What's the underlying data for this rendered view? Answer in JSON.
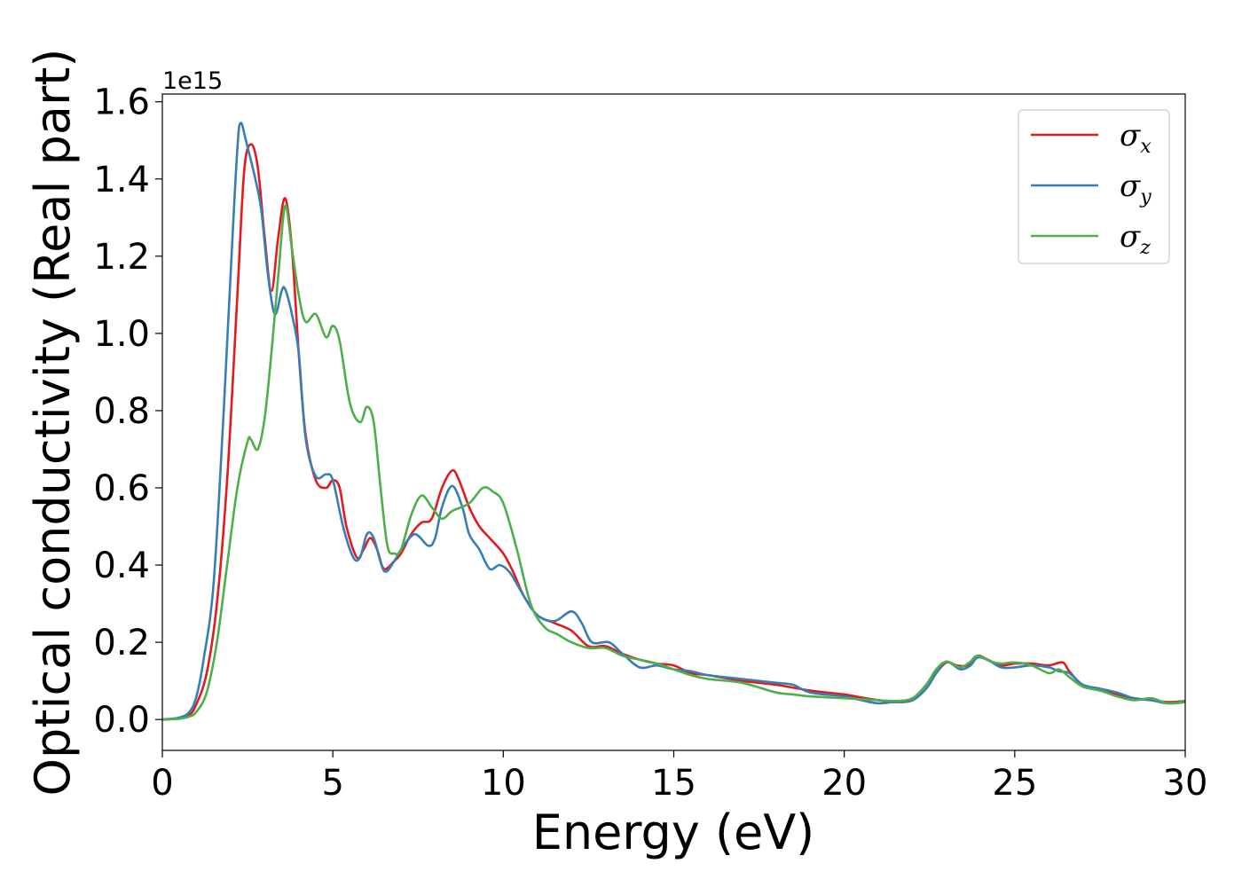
{
  "chart_data": {
    "type": "line",
    "title": "",
    "xlabel": "Energy (eV)",
    "ylabel": "Optical conductivity (Real part)",
    "y_offset_label": "1e15",
    "xlim": [
      0,
      30
    ],
    "ylim": [
      -0.08,
      1.62
    ],
    "x_ticks": [
      0,
      5,
      10,
      15,
      20,
      25,
      30
    ],
    "y_ticks": [
      0.0,
      0.2,
      0.4,
      0.6,
      0.8,
      1.0,
      1.2,
      1.4,
      1.6
    ],
    "x_tick_labels": [
      "0",
      "5",
      "10",
      "15",
      "20",
      "25",
      "30"
    ],
    "y_tick_labels": [
      "0.0",
      "0.2",
      "0.4",
      "0.6",
      "0.8",
      "1.0",
      "1.2",
      "1.4",
      "1.6"
    ],
    "grid": false,
    "legend_position": "top-right",
    "series": [
      {
        "name": "σx",
        "symbol": "σ",
        "subscript": "x",
        "color": "#e41a1c",
        "points": [
          [
            0,
            0
          ],
          [
            0.5,
            0.003
          ],
          [
            0.8,
            0.012
          ],
          [
            1.0,
            0.04
          ],
          [
            1.3,
            0.12
          ],
          [
            1.6,
            0.3
          ],
          [
            1.9,
            0.62
          ],
          [
            2.2,
            1.1
          ],
          [
            2.4,
            1.42
          ],
          [
            2.6,
            1.49
          ],
          [
            2.8,
            1.43
          ],
          [
            3.0,
            1.25
          ],
          [
            3.2,
            1.11
          ],
          [
            3.4,
            1.25
          ],
          [
            3.6,
            1.35
          ],
          [
            3.8,
            1.22
          ],
          [
            4.0,
            0.95
          ],
          [
            4.2,
            0.74
          ],
          [
            4.5,
            0.62
          ],
          [
            4.8,
            0.6
          ],
          [
            5.0,
            0.62
          ],
          [
            5.2,
            0.6
          ],
          [
            5.4,
            0.5
          ],
          [
            5.7,
            0.42
          ],
          [
            5.9,
            0.44
          ],
          [
            6.1,
            0.47
          ],
          [
            6.3,
            0.44
          ],
          [
            6.5,
            0.39
          ],
          [
            6.8,
            0.41
          ],
          [
            7.0,
            0.43
          ],
          [
            7.3,
            0.48
          ],
          [
            7.6,
            0.51
          ],
          [
            7.9,
            0.52
          ],
          [
            8.2,
            0.6
          ],
          [
            8.5,
            0.645
          ],
          [
            8.7,
            0.62
          ],
          [
            9.0,
            0.55
          ],
          [
            9.3,
            0.5
          ],
          [
            9.6,
            0.47
          ],
          [
            10.0,
            0.43
          ],
          [
            10.3,
            0.38
          ],
          [
            10.6,
            0.32
          ],
          [
            11.0,
            0.27
          ],
          [
            11.5,
            0.25
          ],
          [
            12.0,
            0.23
          ],
          [
            12.5,
            0.19
          ],
          [
            13.0,
            0.19
          ],
          [
            13.5,
            0.17
          ],
          [
            14.0,
            0.155
          ],
          [
            14.5,
            0.145
          ],
          [
            15.0,
            0.14
          ],
          [
            15.5,
            0.12
          ],
          [
            16.0,
            0.115
          ],
          [
            17.0,
            0.1
          ],
          [
            18.0,
            0.09
          ],
          [
            19.0,
            0.075
          ],
          [
            20.0,
            0.065
          ],
          [
            20.5,
            0.057
          ],
          [
            21.0,
            0.05
          ],
          [
            21.5,
            0.045
          ],
          [
            22.0,
            0.05
          ],
          [
            22.4,
            0.08
          ],
          [
            22.7,
            0.12
          ],
          [
            23.0,
            0.148
          ],
          [
            23.3,
            0.14
          ],
          [
            23.6,
            0.14
          ],
          [
            23.9,
            0.165
          ],
          [
            24.2,
            0.155
          ],
          [
            24.6,
            0.14
          ],
          [
            25.0,
            0.145
          ],
          [
            25.5,
            0.145
          ],
          [
            26.0,
            0.14
          ],
          [
            26.4,
            0.148
          ],
          [
            26.6,
            0.125
          ],
          [
            27.0,
            0.088
          ],
          [
            27.5,
            0.075
          ],
          [
            28.0,
            0.065
          ],
          [
            28.5,
            0.055
          ],
          [
            29.0,
            0.05
          ],
          [
            29.5,
            0.045
          ],
          [
            30.0,
            0.048
          ]
        ]
      },
      {
        "name": "σy",
        "symbol": "σ",
        "subscript": "y",
        "color": "#377eb8",
        "points": [
          [
            0,
            0
          ],
          [
            0.5,
            0.005
          ],
          [
            0.8,
            0.02
          ],
          [
            1.0,
            0.06
          ],
          [
            1.2,
            0.15
          ],
          [
            1.5,
            0.35
          ],
          [
            1.8,
            0.8
          ],
          [
            2.0,
            1.15
          ],
          [
            2.2,
            1.48
          ],
          [
            2.3,
            1.545
          ],
          [
            2.45,
            1.5
          ],
          [
            2.7,
            1.41
          ],
          [
            2.9,
            1.32
          ],
          [
            3.1,
            1.15
          ],
          [
            3.3,
            1.05
          ],
          [
            3.5,
            1.11
          ],
          [
            3.6,
            1.115
          ],
          [
            3.8,
            1.05
          ],
          [
            4.0,
            0.95
          ],
          [
            4.2,
            0.73
          ],
          [
            4.5,
            0.63
          ],
          [
            4.8,
            0.635
          ],
          [
            5.0,
            0.62
          ],
          [
            5.3,
            0.5
          ],
          [
            5.6,
            0.42
          ],
          [
            5.8,
            0.42
          ],
          [
            6.0,
            0.48
          ],
          [
            6.2,
            0.47
          ],
          [
            6.5,
            0.385
          ],
          [
            6.8,
            0.41
          ],
          [
            7.0,
            0.44
          ],
          [
            7.4,
            0.48
          ],
          [
            7.8,
            0.45
          ],
          [
            8.0,
            0.47
          ],
          [
            8.2,
            0.55
          ],
          [
            8.5,
            0.605
          ],
          [
            8.8,
            0.55
          ],
          [
            9.0,
            0.48
          ],
          [
            9.3,
            0.44
          ],
          [
            9.6,
            0.39
          ],
          [
            9.9,
            0.4
          ],
          [
            10.2,
            0.38
          ],
          [
            10.6,
            0.32
          ],
          [
            11.0,
            0.27
          ],
          [
            11.5,
            0.255
          ],
          [
            12.0,
            0.28
          ],
          [
            12.3,
            0.25
          ],
          [
            12.6,
            0.2
          ],
          [
            13.1,
            0.2
          ],
          [
            13.5,
            0.17
          ],
          [
            14.0,
            0.135
          ],
          [
            14.5,
            0.14
          ],
          [
            15.0,
            0.13
          ],
          [
            15.5,
            0.125
          ],
          [
            16.0,
            0.115
          ],
          [
            17.0,
            0.105
          ],
          [
            18.0,
            0.095
          ],
          [
            18.5,
            0.09
          ],
          [
            19.0,
            0.07
          ],
          [
            20.0,
            0.06
          ],
          [
            20.5,
            0.05
          ],
          [
            21.0,
            0.042
          ],
          [
            21.5,
            0.046
          ],
          [
            22.0,
            0.05
          ],
          [
            22.4,
            0.08
          ],
          [
            22.7,
            0.12
          ],
          [
            23.0,
            0.15
          ],
          [
            23.4,
            0.13
          ],
          [
            23.7,
            0.14
          ],
          [
            23.9,
            0.16
          ],
          [
            24.2,
            0.155
          ],
          [
            24.6,
            0.135
          ],
          [
            25.0,
            0.135
          ],
          [
            25.5,
            0.14
          ],
          [
            26.0,
            0.135
          ],
          [
            26.3,
            0.125
          ],
          [
            26.6,
            0.12
          ],
          [
            27.0,
            0.09
          ],
          [
            27.5,
            0.08
          ],
          [
            28.0,
            0.07
          ],
          [
            28.5,
            0.055
          ],
          [
            29.0,
            0.05
          ],
          [
            29.5,
            0.042
          ],
          [
            30.0,
            0.048
          ]
        ]
      },
      {
        "name": "σz",
        "symbol": "σ",
        "subscript": "z",
        "color": "#4daf4a",
        "points": [
          [
            0,
            0
          ],
          [
            0.5,
            0.002
          ],
          [
            0.8,
            0.008
          ],
          [
            1.0,
            0.02
          ],
          [
            1.3,
            0.07
          ],
          [
            1.6,
            0.2
          ],
          [
            1.9,
            0.4
          ],
          [
            2.2,
            0.6
          ],
          [
            2.5,
            0.72
          ],
          [
            2.6,
            0.725
          ],
          [
            2.8,
            0.7
          ],
          [
            3.0,
            0.78
          ],
          [
            3.2,
            0.95
          ],
          [
            3.4,
            1.15
          ],
          [
            3.6,
            1.33
          ],
          [
            3.8,
            1.22
          ],
          [
            4.0,
            1.1
          ],
          [
            4.2,
            1.03
          ],
          [
            4.5,
            1.05
          ],
          [
            4.8,
            0.99
          ],
          [
            5.0,
            1.02
          ],
          [
            5.2,
            0.98
          ],
          [
            5.5,
            0.82
          ],
          [
            5.8,
            0.77
          ],
          [
            6.0,
            0.81
          ],
          [
            6.2,
            0.77
          ],
          [
            6.4,
            0.6
          ],
          [
            6.6,
            0.45
          ],
          [
            6.8,
            0.43
          ],
          [
            7.0,
            0.44
          ],
          [
            7.3,
            0.53
          ],
          [
            7.6,
            0.58
          ],
          [
            7.9,
            0.55
          ],
          [
            8.2,
            0.52
          ],
          [
            8.5,
            0.54
          ],
          [
            9.0,
            0.56
          ],
          [
            9.4,
            0.6
          ],
          [
            9.7,
            0.59
          ],
          [
            10.0,
            0.56
          ],
          [
            10.4,
            0.44
          ],
          [
            10.8,
            0.3
          ],
          [
            11.2,
            0.24
          ],
          [
            11.6,
            0.22
          ],
          [
            12.0,
            0.2
          ],
          [
            12.5,
            0.185
          ],
          [
            13.0,
            0.185
          ],
          [
            13.5,
            0.165
          ],
          [
            14.0,
            0.155
          ],
          [
            14.5,
            0.145
          ],
          [
            15.0,
            0.13
          ],
          [
            15.5,
            0.115
          ],
          [
            16.0,
            0.105
          ],
          [
            17.0,
            0.095
          ],
          [
            18.0,
            0.07
          ],
          [
            18.5,
            0.065
          ],
          [
            19.0,
            0.06
          ],
          [
            20.0,
            0.055
          ],
          [
            21.0,
            0.05
          ],
          [
            21.5,
            0.048
          ],
          [
            22.0,
            0.055
          ],
          [
            22.4,
            0.09
          ],
          [
            22.7,
            0.13
          ],
          [
            23.0,
            0.15
          ],
          [
            23.4,
            0.135
          ],
          [
            23.7,
            0.15
          ],
          [
            23.9,
            0.165
          ],
          [
            24.3,
            0.15
          ],
          [
            24.6,
            0.145
          ],
          [
            25.0,
            0.148
          ],
          [
            25.5,
            0.14
          ],
          [
            26.0,
            0.12
          ],
          [
            26.3,
            0.13
          ],
          [
            26.6,
            0.11
          ],
          [
            27.0,
            0.085
          ],
          [
            27.5,
            0.075
          ],
          [
            28.0,
            0.06
          ],
          [
            28.5,
            0.05
          ],
          [
            29.0,
            0.055
          ],
          [
            29.5,
            0.042
          ],
          [
            30.0,
            0.045
          ]
        ]
      }
    ]
  }
}
